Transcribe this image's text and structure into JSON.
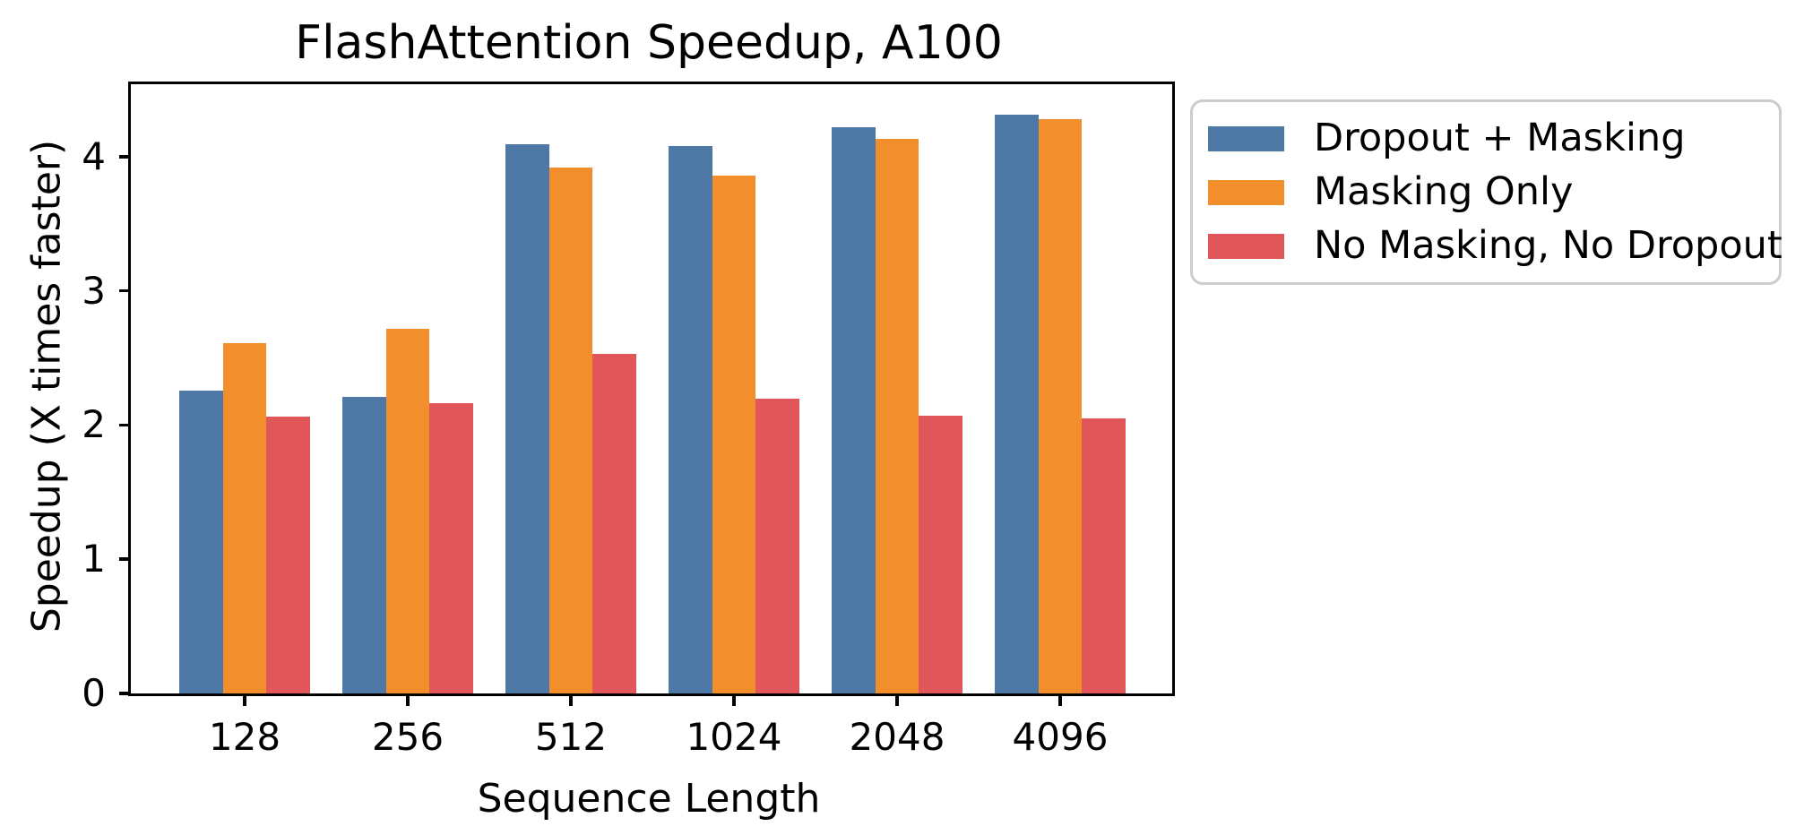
{
  "chart_data": {
    "type": "bar",
    "title": "FlashAttention Speedup, A100",
    "xlabel": "Sequence Length",
    "ylabel": "Speedup (X times faster)",
    "categories": [
      "128",
      "256",
      "512",
      "1024",
      "2048",
      "4096"
    ],
    "series": [
      {
        "name": "Dropout + Masking",
        "color": "#4E79A7",
        "values": [
          2.26,
          2.21,
          4.09,
          4.08,
          4.22,
          4.31
        ]
      },
      {
        "name": "Masking Only",
        "color": "#F28E2B",
        "values": [
          2.61,
          2.72,
          3.92,
          3.86,
          4.13,
          4.28
        ]
      },
      {
        "name": "No Masking, No Dropout",
        "color": "#E15759",
        "values": [
          2.06,
          2.16,
          2.53,
          2.2,
          2.07,
          2.05
        ]
      }
    ],
    "ylim": [
      0,
      4.54
    ],
    "yticks": [
      0,
      1,
      2,
      3,
      4
    ],
    "grid": false,
    "legend_position": "outside-top-right",
    "axis_color": "#000000",
    "legend_border_color": "#cccccc"
  }
}
